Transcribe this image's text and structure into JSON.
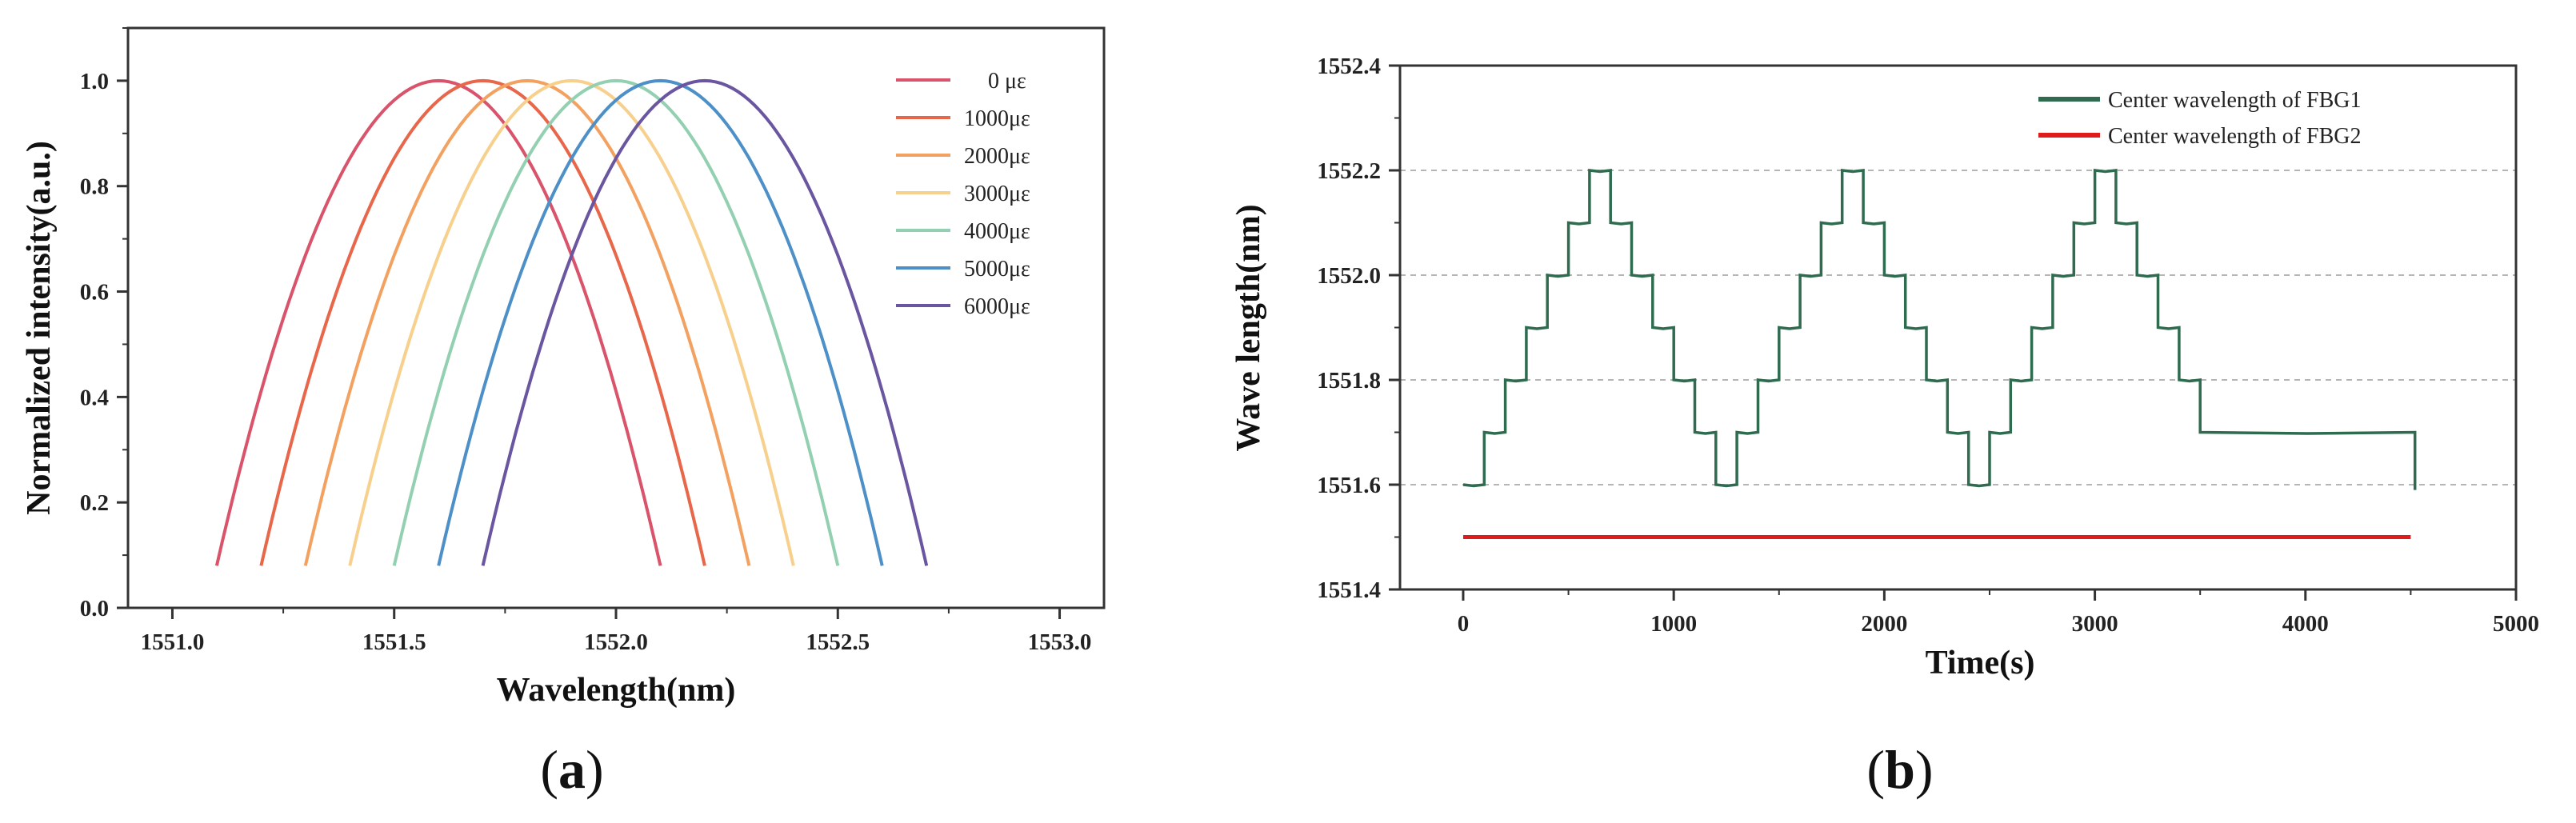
{
  "figure": {
    "label_a": "a",
    "label_b": "b"
  },
  "chart_data": [
    {
      "type": "line",
      "title": "",
      "xlabel": "Wavelength(nm)",
      "ylabel": "Normalized intensity(a.u.)",
      "xlim": [
        1550.9,
        1553.1
      ],
      "ylim": [
        0.0,
        1.1
      ],
      "xticks": [
        "1551.0",
        "1551.5",
        "1552.0",
        "1552.5",
        "1553.0"
      ],
      "yticks": [
        "0.0",
        "0.2",
        "0.4",
        "0.6",
        "0.8",
        "1.0"
      ],
      "grid": false,
      "legend_position": "top-right",
      "shape": "parabolic peak, base at 0.08",
      "half_width": 0.5,
      "series": [
        {
          "name": "0 με",
          "center": 1551.6,
          "peak": 1.0,
          "color": "#d9536b"
        },
        {
          "name": "1000με",
          "center": 1551.7,
          "peak": 1.0,
          "color": "#e8664a"
        },
        {
          "name": "2000με",
          "center": 1551.8,
          "peak": 1.0,
          "color": "#f2a160"
        },
        {
          "name": "3000με",
          "center": 1551.9,
          "peak": 1.0,
          "color": "#f7d08d"
        },
        {
          "name": "4000με",
          "center": 1552.0,
          "peak": 1.0,
          "color": "#93d0b1"
        },
        {
          "name": "5000με",
          "center": 1552.1,
          "peak": 1.0,
          "color": "#4d8fc7"
        },
        {
          "name": "6000με",
          "center": 1552.2,
          "peak": 1.0,
          "color": "#6a56a0"
        }
      ]
    },
    {
      "type": "line",
      "title": "",
      "xlabel": "Time(s)",
      "ylabel": "Wave length(nm)",
      "xlim": [
        -300,
        5000
      ],
      "ylim": [
        1551.4,
        1552.4
      ],
      "xticks": [
        "0",
        "1000",
        "2000",
        "3000",
        "4000",
        "5000"
      ],
      "yticks": [
        "1551.4",
        "1551.6",
        "1551.8",
        "1552.0",
        "1552.2",
        "1552.4"
      ],
      "grid": "horizontal dashed",
      "legend_position": "top-right",
      "series": [
        {
          "name": "Center wavelength of FBG1",
          "color": "#2e6b4f",
          "step_seconds": 100,
          "x_start": 0,
          "x_end": 4520,
          "values": [
            1551.6,
            1551.7,
            1551.8,
            1551.9,
            1552.0,
            1552.1,
            1552.2,
            1552.1,
            1552.0,
            1551.9,
            1551.8,
            1551.7,
            1551.6,
            1551.7,
            1551.8,
            1551.9,
            1552.0,
            1552.1,
            1552.2,
            1552.1,
            1552.0,
            1551.9,
            1551.8,
            1551.7,
            1551.6,
            1551.7,
            1551.8,
            1551.9,
            1552.0,
            1552.1,
            1552.2,
            1552.1,
            1552.0,
            1551.9,
            1551.8,
            1551.7
          ]
        },
        {
          "name": "Center wavelength of FBG2",
          "color": "#e01b1b",
          "x": [
            0,
            4500
          ],
          "values": [
            1551.5,
            1551.5
          ]
        }
      ]
    }
  ]
}
